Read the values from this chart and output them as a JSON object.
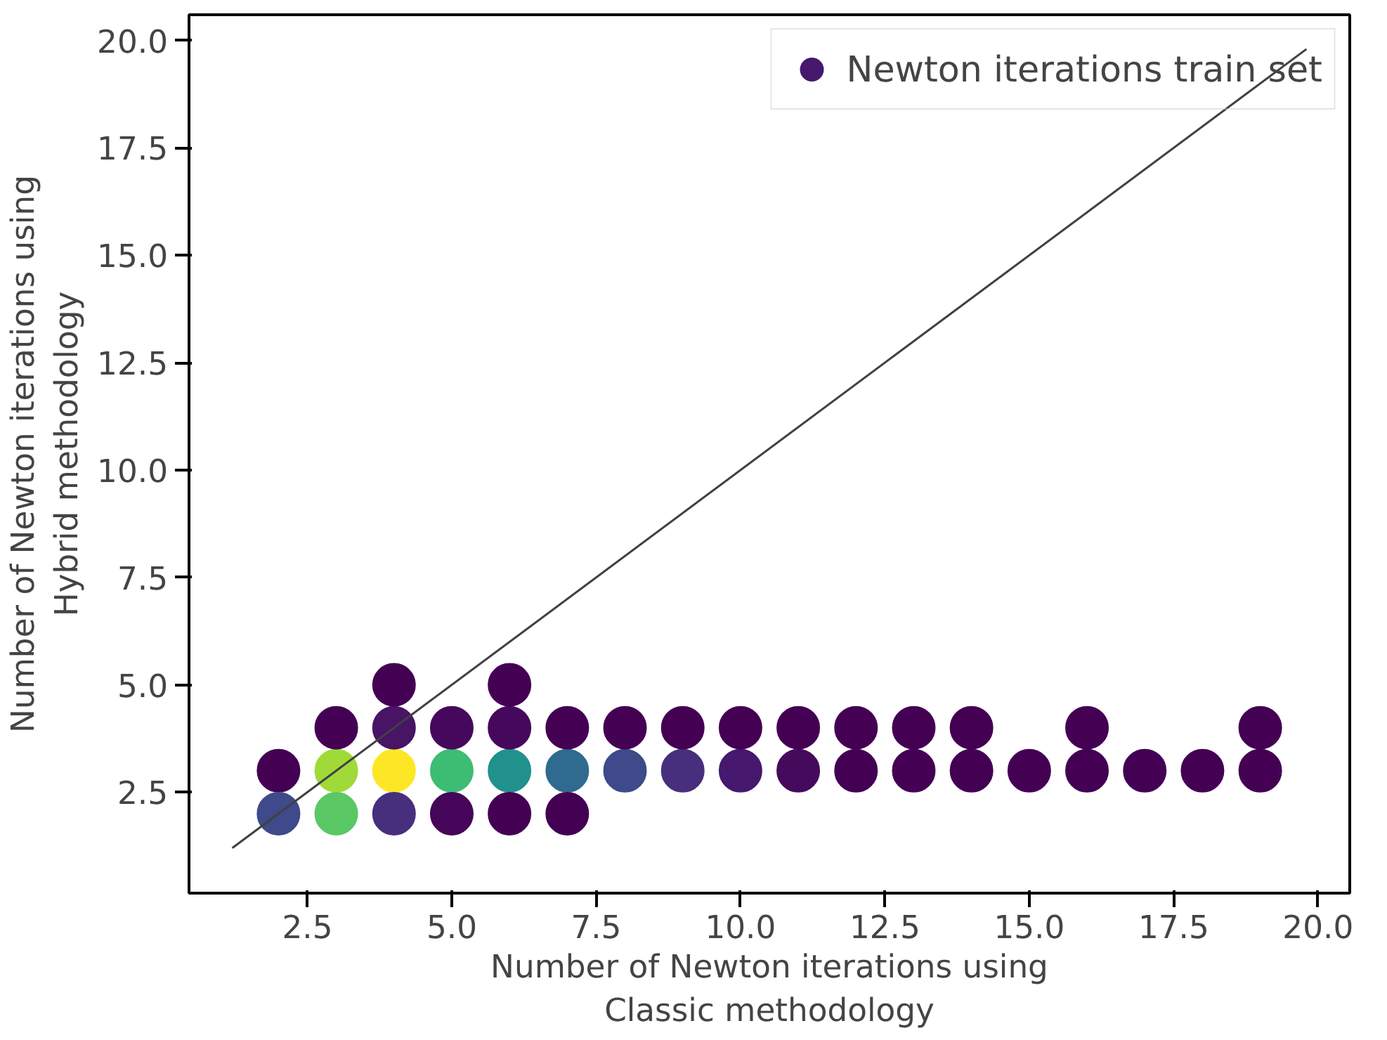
{
  "chart_data": {
    "type": "scatter",
    "xlabel": "Number of Newton iterations using\nClassic methodology",
    "ylabel": "Number of Newton iterations using\nHybrid methodology",
    "xlim": [
      0.45,
      20.55
    ],
    "ylim": [
      0.15,
      20.6
    ],
    "xticks": [
      {
        "value": 2.5,
        "label": "2.5"
      },
      {
        "value": 5,
        "label": "5.0"
      },
      {
        "value": 7.5,
        "label": "7.5"
      },
      {
        "value": 10,
        "label": "10.0"
      },
      {
        "value": 12.5,
        "label": "12.5"
      },
      {
        "value": 15,
        "label": "15.0"
      },
      {
        "value": 17.5,
        "label": "17.5"
      },
      {
        "value": 20,
        "label": "20.0"
      }
    ],
    "yticks": [
      {
        "value": 2.5,
        "label": "2.5"
      },
      {
        "value": 5,
        "label": "5.0"
      },
      {
        "value": 7.5,
        "label": "7.5"
      },
      {
        "value": 10,
        "label": "10.0"
      },
      {
        "value": 12.5,
        "label": "12.5"
      },
      {
        "value": 15,
        "label": "15.0"
      },
      {
        "value": 17.5,
        "label": "17.5"
      },
      {
        "value": 20,
        "label": "20.0"
      }
    ],
    "grid": false,
    "legend": "top right",
    "marker": "circle",
    "series": [
      {
        "name": "Newton iterations train set",
        "x": [
          2,
          3,
          4,
          5,
          6,
          7,
          8,
          9,
          10,
          11,
          12,
          13,
          14,
          15,
          16,
          17,
          18,
          19,
          2,
          3,
          4,
          5,
          6,
          7,
          3,
          4,
          5,
          6,
          7,
          8,
          9,
          10,
          11,
          12,
          13,
          14,
          16,
          19,
          4,
          6
        ],
        "values": [
          3,
          3,
          3,
          3,
          3,
          3,
          3,
          3,
          3,
          3,
          3,
          3,
          3,
          3,
          3,
          3,
          3,
          3,
          2,
          2,
          2,
          2,
          2,
          2,
          4,
          4,
          4,
          4,
          4,
          4,
          4,
          4,
          4,
          4,
          4,
          4,
          4,
          4,
          5,
          5
        ],
        "colors": [
          "#440154",
          "#a0da39",
          "#fde725",
          "#3dbc74",
          "#21918c",
          "#2e6b8e",
          "#3e4a89",
          "#472f7d",
          "#46186e",
          "#450a5c",
          "#440154",
          "#440154",
          "#440154",
          "#440154",
          "#440154",
          "#440154",
          "#440154",
          "#440154",
          "#3e4a89",
          "#5ac864",
          "#472f7d",
          "#450559",
          "#440154",
          "#440154",
          "#440154",
          "#471466",
          "#46085c",
          "#46085c",
          "#440154",
          "#440154",
          "#440154",
          "#440154",
          "#440154",
          "#440154",
          "#440154",
          "#440154",
          "#440154",
          "#440154",
          "#440154",
          "#440154"
        ]
      },
      {
        "type": "line",
        "marker": "none",
        "color": "#404040",
        "x": [
          1.2,
          19.8
        ],
        "values": [
          1.2,
          19.8
        ]
      }
    ]
  }
}
